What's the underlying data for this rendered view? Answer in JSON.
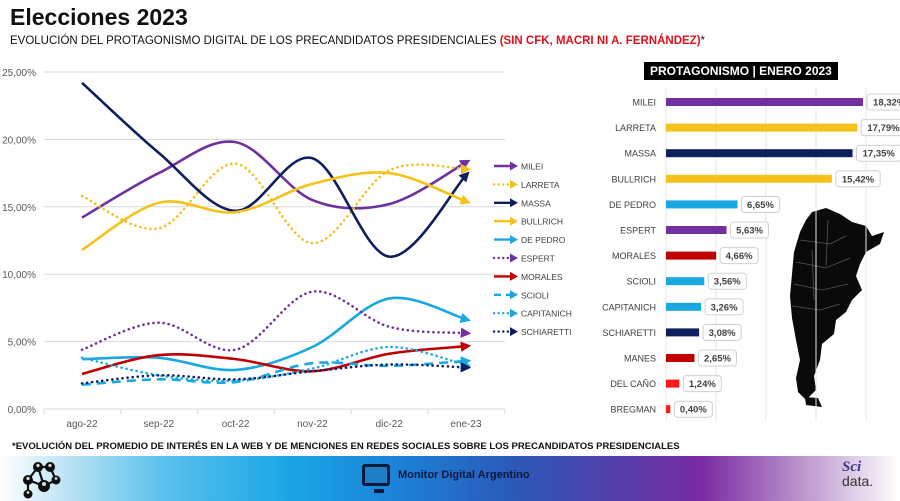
{
  "header": {
    "title": "Elecciones 2023",
    "subtitle_main": "EVOLUCIÓN DEL PROTAGONISMO DIGITAL DE LOS PRECANDIDATOS PRESIDENCIALES ",
    "subtitle_highlight": "(SIN CFK, MACRI NI A. FERNÁNDEZ)",
    "subtitle_suffix": "*"
  },
  "footnote": "*EVOLUCIÓN DEL PROMEDIO DE INTERÉS EN LA WEB Y DE MENCIONES EN REDES SOCIALES SOBRE LOS PRECANDIDATOS PRESIDENCIALES",
  "footer": {
    "left_icon": "network-people-icon",
    "center_icon": "monitor-icon",
    "center_label": "Monitor Digital Argentino",
    "brand_top": "Sci",
    "brand_bottom": "data."
  },
  "colors": {
    "milei": "#7030a0",
    "larreta": "#f2c01e",
    "massa": "#0d1f5c",
    "bullrich": "#f5c21b",
    "de_pedro": "#1aa8e0",
    "espert": "#7030a0",
    "morales": "#c00000",
    "scioli": "#1aa8e0",
    "capitanich": "#1aa8e0",
    "schiaretti": "#0d1f5c",
    "manes": "#c00000",
    "del_cano": "#ff1a1a",
    "bregman": "#ff1a1a",
    "highlight_red": "#e0101a"
  },
  "chart_data": [
    {
      "type": "line",
      "title": "",
      "xlabel": "",
      "ylabel": "",
      "categories": [
        "ago-22",
        "sep-22",
        "oct-22",
        "nov-22",
        "dic-22",
        "ene-23"
      ],
      "ylim": [
        0,
        25
      ],
      "y_ticks": [
        "0,00%",
        "5,00%",
        "10,00%",
        "15,00%",
        "20,00%",
        "25,00%"
      ],
      "grid": true,
      "legend_position": "right",
      "series": [
        {
          "name": "MILEI",
          "style": "solid",
          "color": "#7030a0",
          "values": [
            14.2,
            17.5,
            19.8,
            15.5,
            15.2,
            18.3
          ]
        },
        {
          "name": "LARRETA",
          "style": "dotted",
          "color": "#f2c01e",
          "values": [
            15.8,
            13.4,
            18.2,
            12.3,
            17.7,
            17.8
          ]
        },
        {
          "name": "MASSA",
          "style": "solid",
          "color": "#0d1f5c",
          "values": [
            24.2,
            19.0,
            14.7,
            18.6,
            11.3,
            17.35
          ]
        },
        {
          "name": "BULLRICH",
          "style": "solid",
          "color": "#f5c21b",
          "values": [
            11.8,
            15.3,
            14.6,
            16.7,
            17.5,
            15.4
          ]
        },
        {
          "name": "DE PEDRO",
          "style": "solid",
          "color": "#1aa8e0",
          "values": [
            3.7,
            3.8,
            2.9,
            4.6,
            8.2,
            6.65
          ]
        },
        {
          "name": "ESPERT",
          "style": "dotted",
          "color": "#7030a0",
          "values": [
            4.4,
            6.4,
            4.4,
            8.7,
            6.1,
            5.63
          ]
        },
        {
          "name": "MORALES",
          "style": "solid",
          "color": "#c00000",
          "values": [
            2.6,
            4.0,
            3.7,
            2.8,
            4.1,
            4.66
          ]
        },
        {
          "name": "SCIOLI",
          "style": "dashed",
          "color": "#1aa8e0",
          "values": [
            1.8,
            2.2,
            2.0,
            3.4,
            3.2,
            3.56
          ]
        },
        {
          "name": "CAPITANICH",
          "style": "dotted",
          "color": "#1aa8e0",
          "values": [
            3.8,
            2.5,
            2.1,
            3.0,
            4.6,
            3.26
          ]
        },
        {
          "name": "SCHIARETTI",
          "style": "dotted",
          "color": "#0d1f5c",
          "values": [
            1.9,
            2.5,
            2.2,
            2.8,
            3.3,
            3.08
          ]
        }
      ]
    },
    {
      "type": "bar",
      "orientation": "horizontal",
      "title": "PROTAGONISMO | ENERO 2023",
      "categories": [
        "MILEI",
        "LARRETA",
        "MASSA",
        "BULLRICH",
        "DE PEDRO",
        "ESPERT",
        "MORALES",
        "SCIOLI",
        "CAPITANICH",
        "SCHIARETTI",
        "MANES",
        "DEL CAÑO",
        "BREGMAN"
      ],
      "values": [
        18.32,
        17.79,
        17.35,
        15.42,
        6.65,
        5.63,
        4.66,
        3.56,
        3.26,
        3.08,
        2.65,
        1.24,
        0.4
      ],
      "labels": [
        "18,32%",
        "17,79%",
        "17,35%",
        "15,42%",
        "6,65%",
        "5,63%",
        "4,66%",
        "3,56%",
        "3,26%",
        "3,08%",
        "2,65%",
        "1,24%",
        "0,40%"
      ],
      "colors": [
        "#7030a0",
        "#f5c21b",
        "#0d1f5c",
        "#f5c21b",
        "#1aa8e0",
        "#7030a0",
        "#c00000",
        "#1aa8e0",
        "#1aa8e0",
        "#0d1f5c",
        "#c00000",
        "#ff1a1a",
        "#ff1a1a"
      ],
      "xlim": [
        0,
        20
      ],
      "grid": true,
      "decoration": "argentina-map-silhouette"
    }
  ]
}
